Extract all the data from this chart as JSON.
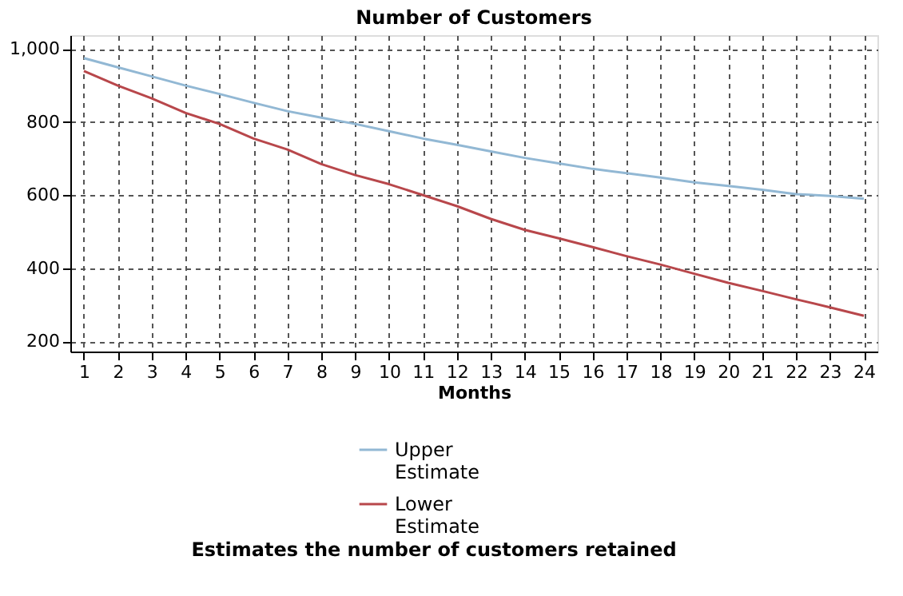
{
  "chart_data": {
    "type": "line",
    "title": "Number of Customers",
    "xlabel": "Months",
    "x": [
      1,
      2,
      3,
      4,
      5,
      6,
      7,
      8,
      9,
      10,
      11,
      12,
      13,
      14,
      15,
      16,
      17,
      18,
      19,
      20,
      21,
      22,
      23,
      24
    ],
    "series": [
      {
        "name": "Upper Estimate",
        "color": "#92b8d4",
        "values": [
          975,
          950,
          925,
          900,
          877,
          853,
          830,
          812,
          795,
          775,
          755,
          738,
          720,
          702,
          687,
          672,
          660,
          648,
          635,
          625,
          615,
          603,
          598,
          590
        ]
      },
      {
        "name": "Lower Estimate",
        "color": "#b8474b",
        "values": [
          940,
          900,
          865,
          825,
          795,
          755,
          725,
          685,
          655,
          630,
          600,
          570,
          535,
          505,
          482,
          458,
          433,
          410,
          385,
          360,
          338,
          315,
          293,
          270
        ]
      }
    ],
    "xlim": [
      0.6,
      24.4
    ],
    "xticks": [
      1,
      2,
      3,
      4,
      5,
      6,
      7,
      8,
      9,
      10,
      11,
      12,
      13,
      14,
      15,
      16,
      17,
      18,
      19,
      20,
      21,
      22,
      23,
      24
    ],
    "ylim": [
      172,
      1038
    ],
    "yticks": [
      200,
      400,
      600,
      800,
      {
        "value": 1000,
        "label": "1,000"
      }
    ],
    "grid": true,
    "legend": "bottom",
    "marker": "none",
    "line_style": "solid",
    "annotations": [
      "Estimates the number of customers retained"
    ]
  }
}
